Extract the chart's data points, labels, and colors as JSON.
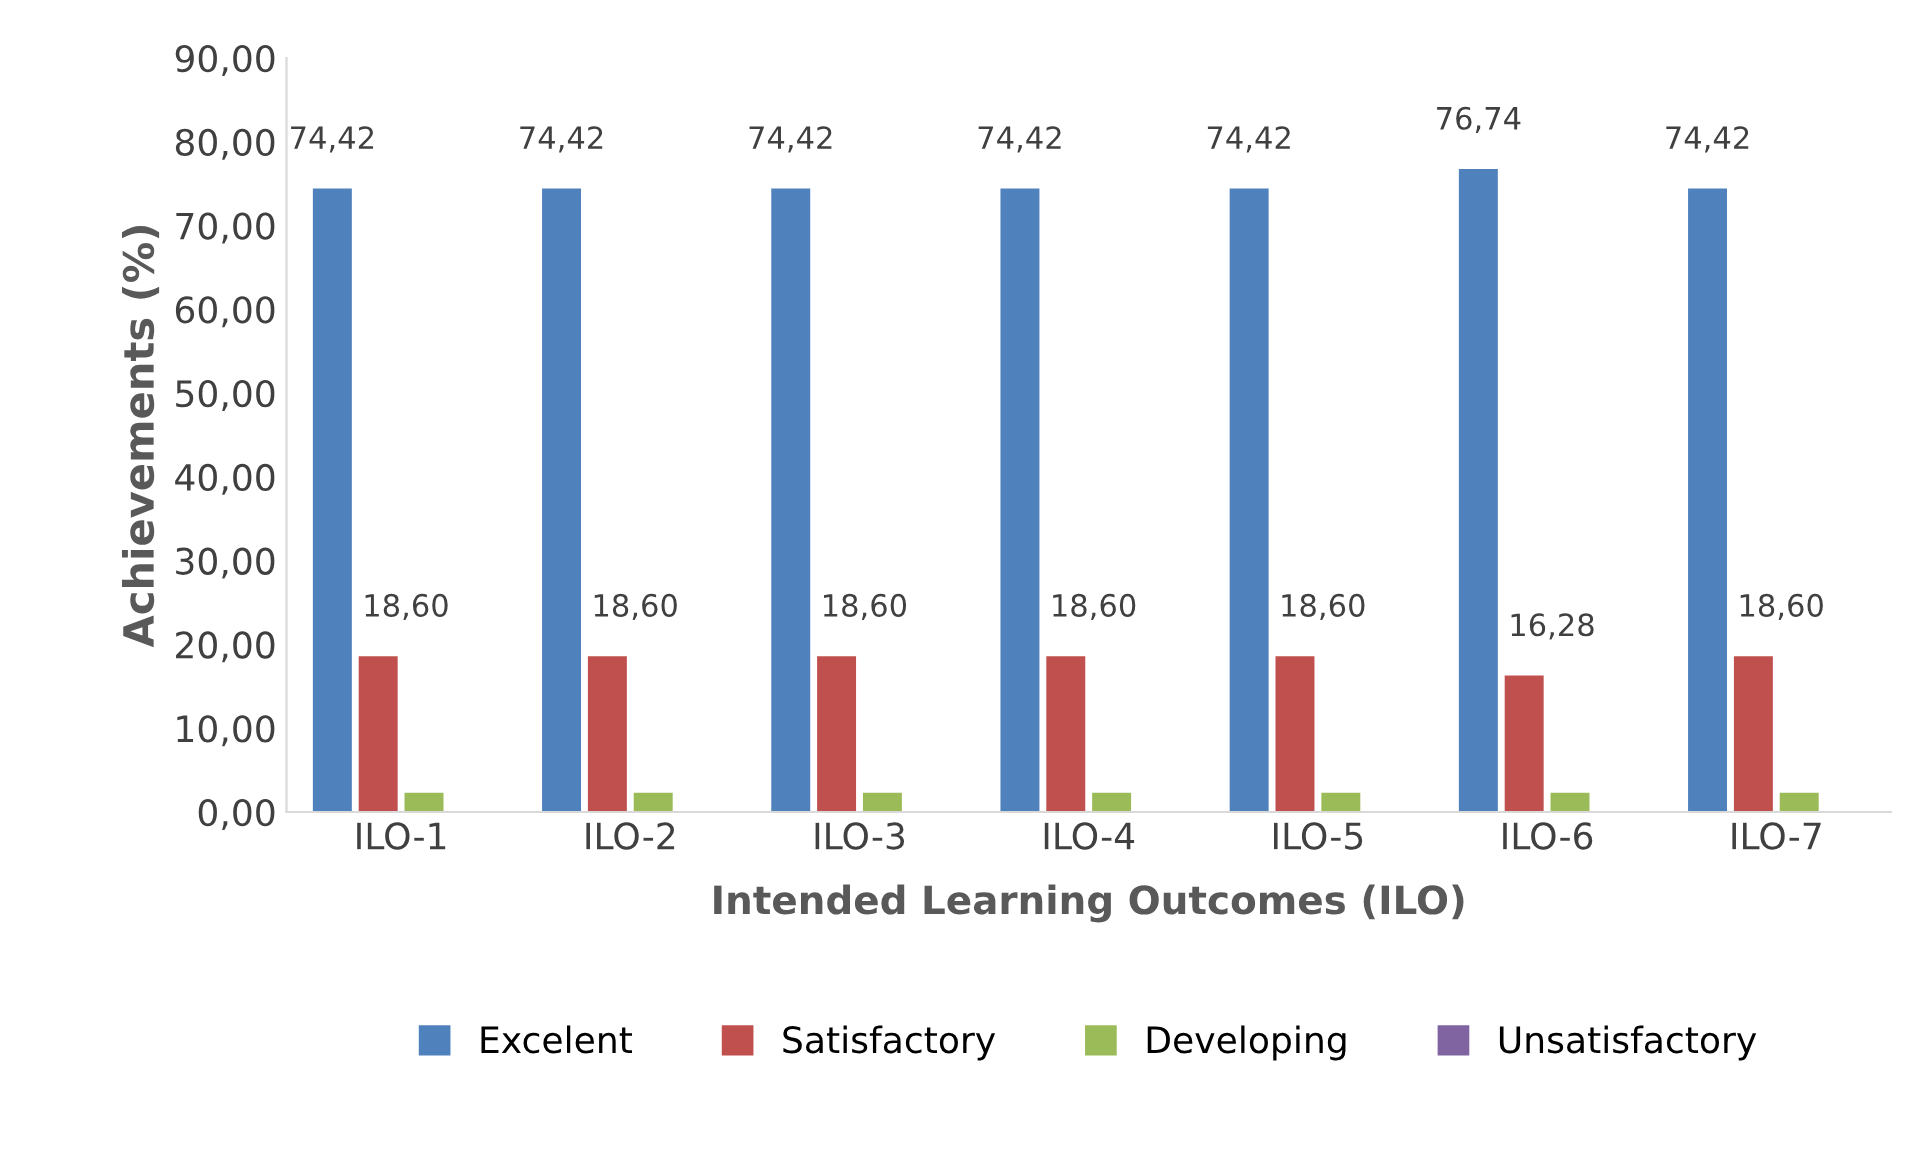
{
  "chart_data": {
    "type": "bar",
    "xlabel": "Intended Learning Outcomes (ILO)",
    "ylabel": "Achievements (%)",
    "categories": [
      "ILO-1",
      "ILO-2",
      "ILO-3",
      "ILO-4",
      "ILO-5",
      "ILO-6",
      "ILO-7"
    ],
    "series": [
      {
        "name": "Excelent",
        "color": "#4f81bd",
        "values": [
          74.42,
          74.42,
          74.42,
          74.42,
          74.42,
          76.74,
          74.42
        ],
        "value_labels": [
          "74,42",
          "74,42",
          "74,42",
          "74,42",
          "74,42",
          "76,74",
          "74,42"
        ]
      },
      {
        "name": "Satisfactory",
        "color": "#c0504d",
        "values": [
          18.6,
          18.6,
          18.6,
          18.6,
          18.6,
          16.28,
          18.6
        ],
        "value_labels": [
          "18,60",
          "18,60",
          "18,60",
          "18,60",
          "18,60",
          "16,28",
          "18,60"
        ]
      },
      {
        "name": "Developing",
        "color": "#9bbb59",
        "values": [
          2.3,
          2.3,
          2.3,
          2.3,
          2.3,
          2.3,
          2.3
        ]
      },
      {
        "name": "Unsatisfactory",
        "color": "#8064a2",
        "values": [
          0,
          0,
          0,
          0,
          0,
          0,
          0
        ]
      }
    ],
    "ylim": [
      0,
      90
    ],
    "yticks": [
      {
        "value": 0,
        "label": "0,00"
      },
      {
        "value": 10,
        "label": "10,00"
      },
      {
        "value": 20,
        "label": "20,00"
      },
      {
        "value": 30,
        "label": "30,00"
      },
      {
        "value": 40,
        "label": "40,00"
      },
      {
        "value": 50,
        "label": "50,00"
      },
      {
        "value": 60,
        "label": "60,00"
      },
      {
        "value": 70,
        "label": "70,00"
      },
      {
        "value": 80,
        "label": "80,00"
      },
      {
        "value": 90,
        "label": "90,00"
      }
    ],
    "grid": false,
    "legend": "bottom"
  }
}
